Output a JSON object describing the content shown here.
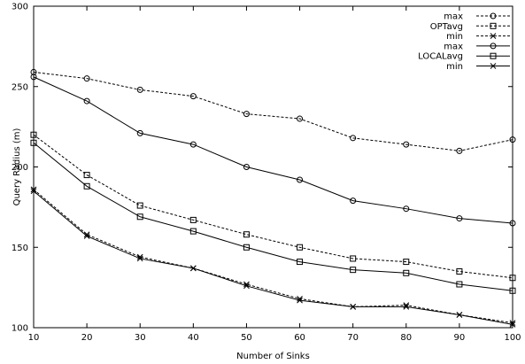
{
  "chart_data": {
    "type": "line",
    "title": "",
    "xlabel": "Number of Sinks",
    "ylabel": "Query Radius (m)",
    "xlim": [
      10,
      100
    ],
    "ylim": [
      100,
      300
    ],
    "x_ticks": [
      "10",
      "20",
      "30",
      "40",
      "50",
      "60",
      "70",
      "80",
      "90",
      "100"
    ],
    "y_ticks": [
      "100",
      "150",
      "200",
      "250",
      "300"
    ],
    "grid": false,
    "legend_position": "top-right",
    "x": [
      10,
      20,
      30,
      40,
      50,
      60,
      70,
      80,
      90,
      100
    ],
    "legend_groups": [
      {
        "label": "OPT:",
        "anchor_series": 1
      },
      {
        "label": "LOCAL:",
        "anchor_series": 4
      }
    ],
    "series": [
      {
        "name": "max",
        "group": "OPT:",
        "line": "dashed",
        "marker": "circle",
        "values": [
          259,
          255,
          248,
          244,
          233,
          230,
          218,
          214,
          210,
          217
        ]
      },
      {
        "name": "avg",
        "group": "OPT:",
        "line": "dashed",
        "marker": "square",
        "values": [
          220,
          195,
          176,
          167,
          158,
          150,
          143,
          141,
          135,
          131
        ]
      },
      {
        "name": "min",
        "group": "OPT:",
        "line": "dashed",
        "marker": "x",
        "values": [
          186,
          158,
          144,
          137,
          127,
          118,
          113,
          114,
          108,
          103
        ]
      },
      {
        "name": "max",
        "group": "LOCAL:",
        "line": "solid",
        "marker": "circle",
        "values": [
          256,
          241,
          221,
          214,
          200,
          192,
          179,
          174,
          168,
          165
        ]
      },
      {
        "name": "avg",
        "group": "LOCAL:",
        "line": "solid",
        "marker": "square",
        "values": [
          215,
          188,
          169,
          160,
          150,
          141,
          136,
          134,
          127,
          123
        ]
      },
      {
        "name": "min",
        "group": "LOCAL:",
        "line": "solid",
        "marker": "x",
        "values": [
          185,
          157,
          143,
          137,
          126,
          117,
          113,
          113,
          108,
          102
        ]
      }
    ]
  }
}
